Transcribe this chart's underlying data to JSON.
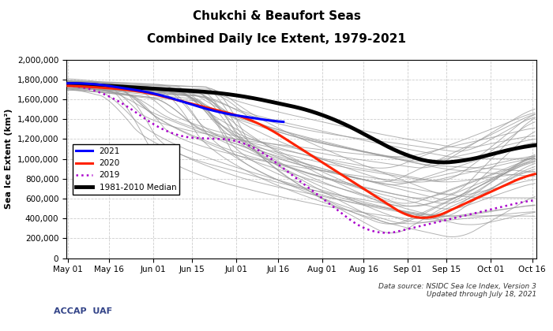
{
  "title_line1": "Chukchi & Beaufort Seas",
  "title_line2": "Combined Daily Ice Extent, 1979-2021",
  "ylabel": "Sea Ice Extent (km²)",
  "ylim": [
    0,
    2000000
  ],
  "yticks": [
    0,
    200000,
    400000,
    600000,
    800000,
    1000000,
    1200000,
    1400000,
    1600000,
    1800000,
    2000000
  ],
  "start_doy": 121,
  "end_doy": 290,
  "xtick_labels": [
    "May 01",
    "May 16",
    "Jun 01",
    "Jun 15",
    "Jul 01",
    "Jul 16",
    "Aug 01",
    "Aug 16",
    "Sep 01",
    "Sep 15",
    "Oct 01",
    "Oct 16"
  ],
  "xtick_doys": [
    121,
    136,
    152,
    166,
    182,
    197,
    213,
    228,
    244,
    258,
    274,
    289
  ],
  "color_2021": "#0000ff",
  "color_2020": "#ff2200",
  "color_2019": "#aa00cc",
  "color_median": "#000000",
  "color_historical": "#999999",
  "lw_2021": 2.2,
  "lw_2020": 2.2,
  "lw_2019": 1.8,
  "lw_median": 3.5,
  "lw_historical": 0.7,
  "annotation_source": "Data source: NSIDC Sea Ice Index, Version 3",
  "annotation_updated": "Updated through July 18, 2021",
  "n_historical": 38
}
